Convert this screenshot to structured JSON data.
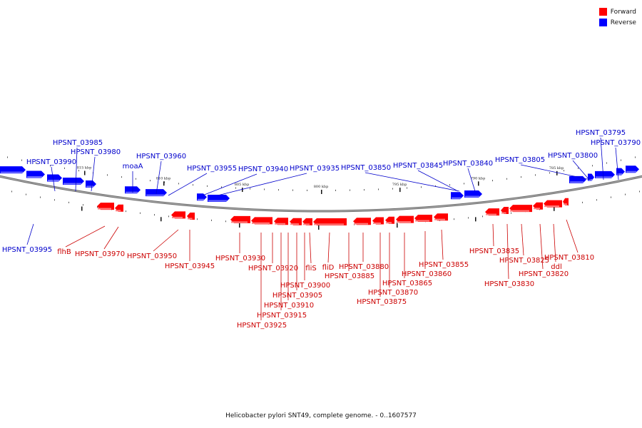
{
  "caption": "Helicobacter pylori SNT49, complete genome. - 0..1607577",
  "legend": {
    "forward": {
      "label": "Forward",
      "color": "#ff0000"
    },
    "reverse": {
      "label": "Reverse",
      "color": "#0000ff"
    }
  },
  "colors": {
    "forward": "#ff0000",
    "forward_label": "#cc0000",
    "reverse": "#0000ff",
    "reverse_label": "#0000cc",
    "backbone": "#888888"
  },
  "scale_labels": [
    "815 kbp",
    "810 kbp",
    "805 kbp",
    "800 kbp",
    "795 kbp",
    "790 kbp",
    "785 kbp"
  ],
  "reverse_labels": [
    "HPSNT_03995",
    "HPSNT_03990",
    "HPSNT_03985",
    "HPSNT_03980",
    "moaA",
    "HPSNT_03960",
    "HPSNT_03955",
    "HPSNT_03940",
    "HPSNT_03935",
    "HPSNT_03850",
    "HPSNT_03845",
    "HPSNT_03840",
    "HPSNT_03805",
    "HPSNT_03800",
    "HPSNT_03795",
    "HPSNT_03790"
  ],
  "forward_labels": [
    "flhB",
    "HPSNT_03970",
    "HPSNT_03950",
    "HPSNT_03945",
    "HPSNT_03930",
    "HPSNT_03920",
    "HPSNT_03925",
    "HPSNT_03915",
    "HPSNT_03910",
    "HPSNT_03905",
    "HPSNT_03900",
    "fliS",
    "fliD",
    "HPSNT_03885",
    "HPSNT_03880",
    "HPSNT_03875",
    "HPSNT_03870",
    "HPSNT_03865",
    "HPSNT_03860",
    "HPSNT_03855",
    "HPSNT_03835",
    "HPSNT_03830",
    "HPSNT_03825",
    "HPSNT_03820",
    "ddl",
    "HPSNT_03810"
  ]
}
